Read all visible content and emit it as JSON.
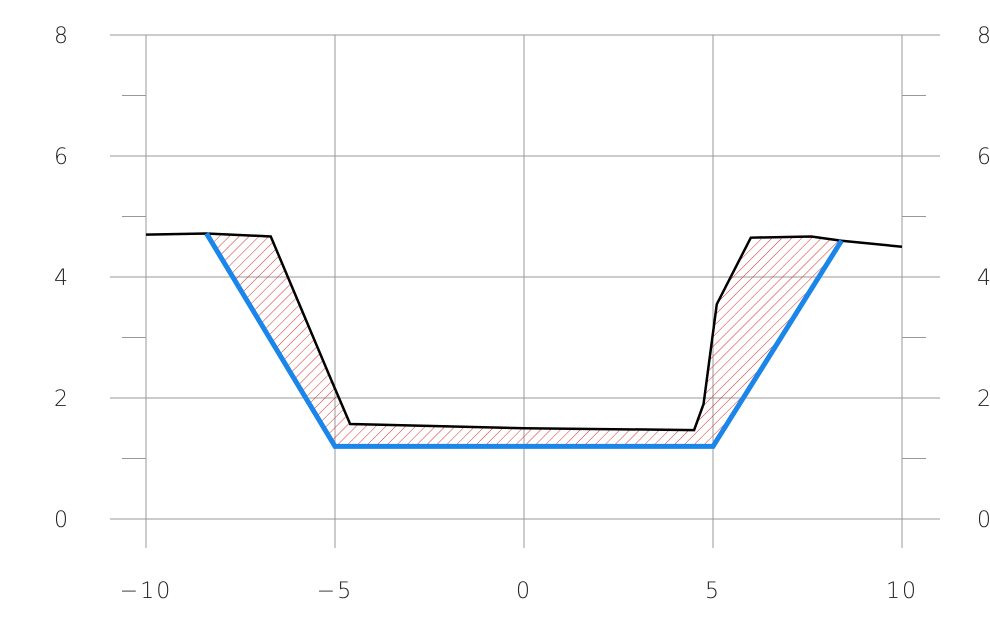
{
  "chart_data": {
    "type": "area",
    "title": "",
    "xlabel": "",
    "ylabel": "",
    "xlim": [
      -10,
      10
    ],
    "ylim": [
      0,
      8
    ],
    "grid": true,
    "x_ticks": [
      "−10",
      "−5",
      "0",
      "5",
      "10"
    ],
    "x_tick_values": [
      -10,
      -5,
      0,
      5,
      10
    ],
    "y_ticks": [
      "0",
      "2",
      "4",
      "6",
      "8"
    ],
    "y_tick_values": [
      0,
      2,
      4,
      6,
      8
    ],
    "right_y_ticks": [
      "0",
      "2",
      "4",
      "6",
      "8"
    ],
    "series": [
      {
        "role": "ground-profile",
        "color": "#000000",
        "x": [
          -10,
          -8.4,
          -6.7,
          -5.1,
          -4.6,
          0,
          4.5,
          4.75,
          5.1,
          6.0,
          7.6,
          8.4,
          10
        ],
        "y": [
          4.7,
          4.72,
          4.67,
          2.3,
          1.57,
          1.5,
          1.47,
          1.9,
          3.55,
          4.65,
          4.67,
          4.6,
          4.5
        ]
      },
      {
        "role": "design-profile",
        "color": "#1a86ea",
        "x": [
          -8.4,
          -5,
          5,
          8.4
        ],
        "y": [
          4.72,
          1.2,
          1.2,
          4.6
        ]
      }
    ],
    "fill": {
      "pattern": "diagonal-hatch",
      "color": "#e03030"
    }
  }
}
